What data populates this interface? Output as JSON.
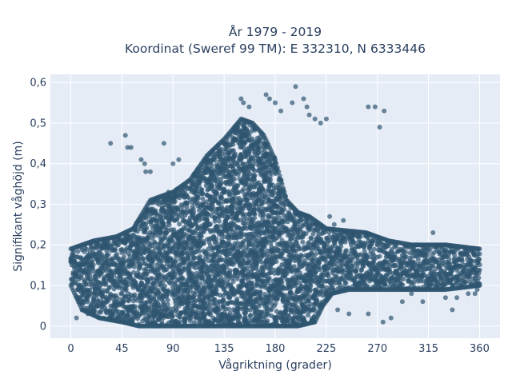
{
  "chart_data": {
    "type": "scatter",
    "title": "År 1979 - 2019",
    "subtitle": "Koordinat (Sweref 99 TM): E 332310, N 6333446",
    "xlabel": "Vågriktning (grader)",
    "ylabel": "Signifikant våghöjd (m)",
    "xlim": [
      -18,
      378
    ],
    "ylim": [
      -0.03,
      0.62
    ],
    "x_ticks": [
      0,
      45,
      90,
      135,
      180,
      225,
      270,
      315,
      360
    ],
    "x_tick_labels": [
      "0",
      "45",
      "90",
      "135",
      "180",
      "225",
      "270",
      "315",
      "360"
    ],
    "y_ticks": [
      0,
      0.1,
      0.2,
      0.3,
      0.4,
      0.5,
      0.6
    ],
    "y_tick_labels": [
      "0",
      "0,1",
      "0,2",
      "0,3",
      "0,4",
      "0,5",
      "0,6"
    ],
    "grid": true,
    "legend": "none",
    "marker_color": "#2f5670",
    "marker_opacity": 0.7,
    "plot_background": "#e5ecf6",
    "envelope_upper": [
      [
        0,
        0.19
      ],
      [
        20,
        0.21
      ],
      [
        40,
        0.22
      ],
      [
        55,
        0.24
      ],
      [
        70,
        0.31
      ],
      [
        90,
        0.33
      ],
      [
        105,
        0.36
      ],
      [
        120,
        0.42
      ],
      [
        135,
        0.46
      ],
      [
        150,
        0.51
      ],
      [
        160,
        0.5
      ],
      [
        170,
        0.47
      ],
      [
        180,
        0.41
      ],
      [
        185,
        0.36
      ],
      [
        190,
        0.31
      ],
      [
        200,
        0.28
      ],
      [
        210,
        0.27
      ],
      [
        225,
        0.24
      ],
      [
        260,
        0.23
      ],
      [
        280,
        0.21
      ],
      [
        300,
        0.2
      ],
      [
        330,
        0.2
      ],
      [
        360,
        0.19
      ]
    ],
    "envelope_lower": [
      [
        0,
        0.1
      ],
      [
        10,
        0.04
      ],
      [
        25,
        0.02
      ],
      [
        45,
        0.01
      ],
      [
        60,
        0.0
      ],
      [
        150,
        0.0
      ],
      [
        200,
        0.0
      ],
      [
        215,
        0.01
      ],
      [
        222,
        0.05
      ],
      [
        230,
        0.08
      ],
      [
        245,
        0.09
      ],
      [
        270,
        0.09
      ],
      [
        300,
        0.09
      ],
      [
        330,
        0.09
      ],
      [
        360,
        0.1
      ]
    ],
    "outliers": [
      {
        "x": 35,
        "y": 0.45
      },
      {
        "x": 48,
        "y": 0.47
      },
      {
        "x": 50,
        "y": 0.44
      },
      {
        "x": 53,
        "y": 0.44
      },
      {
        "x": 62,
        "y": 0.41
      },
      {
        "x": 65,
        "y": 0.4
      },
      {
        "x": 66,
        "y": 0.38
      },
      {
        "x": 70,
        "y": 0.38
      },
      {
        "x": 82,
        "y": 0.45
      },
      {
        "x": 86,
        "y": 0.33
      },
      {
        "x": 90,
        "y": 0.4
      },
      {
        "x": 95,
        "y": 0.41
      },
      {
        "x": 110,
        "y": 0.37
      },
      {
        "x": 120,
        "y": 0.4
      },
      {
        "x": 128,
        "y": 0.44
      },
      {
        "x": 150,
        "y": 0.56
      },
      {
        "x": 152,
        "y": 0.55
      },
      {
        "x": 157,
        "y": 0.54
      },
      {
        "x": 172,
        "y": 0.57
      },
      {
        "x": 175,
        "y": 0.56
      },
      {
        "x": 180,
        "y": 0.55
      },
      {
        "x": 185,
        "y": 0.53
      },
      {
        "x": 195,
        "y": 0.55
      },
      {
        "x": 198,
        "y": 0.59
      },
      {
        "x": 205,
        "y": 0.56
      },
      {
        "x": 208,
        "y": 0.54
      },
      {
        "x": 210,
        "y": 0.52
      },
      {
        "x": 215,
        "y": 0.51
      },
      {
        "x": 220,
        "y": 0.5
      },
      {
        "x": 225,
        "y": 0.51
      },
      {
        "x": 262,
        "y": 0.54
      },
      {
        "x": 268,
        "y": 0.54
      },
      {
        "x": 272,
        "y": 0.49
      },
      {
        "x": 276,
        "y": 0.53
      },
      {
        "x": 228,
        "y": 0.27
      },
      {
        "x": 232,
        "y": 0.25
      },
      {
        "x": 240,
        "y": 0.26
      },
      {
        "x": 235,
        "y": 0.04
      },
      {
        "x": 245,
        "y": 0.03
      },
      {
        "x": 262,
        "y": 0.03
      },
      {
        "x": 275,
        "y": 0.01
      },
      {
        "x": 282,
        "y": 0.02
      },
      {
        "x": 292,
        "y": 0.06
      },
      {
        "x": 300,
        "y": 0.08
      },
      {
        "x": 310,
        "y": 0.06
      },
      {
        "x": 319,
        "y": 0.23
      },
      {
        "x": 330,
        "y": 0.07
      },
      {
        "x": 336,
        "y": 0.04
      },
      {
        "x": 340,
        "y": 0.07
      },
      {
        "x": 350,
        "y": 0.08
      },
      {
        "x": 356,
        "y": 0.08
      },
      {
        "x": 358,
        "y": 0.09
      },
      {
        "x": 5,
        "y": 0.02
      },
      {
        "x": 10,
        "y": 0.04
      },
      {
        "x": 15,
        "y": 0.03
      },
      {
        "x": 20,
        "y": 0.06
      },
      {
        "x": 25,
        "y": 0.05
      },
      {
        "x": 28,
        "y": 0.08
      },
      {
        "x": 232,
        "y": 0.21
      },
      {
        "x": 255,
        "y": 0.22
      }
    ]
  }
}
